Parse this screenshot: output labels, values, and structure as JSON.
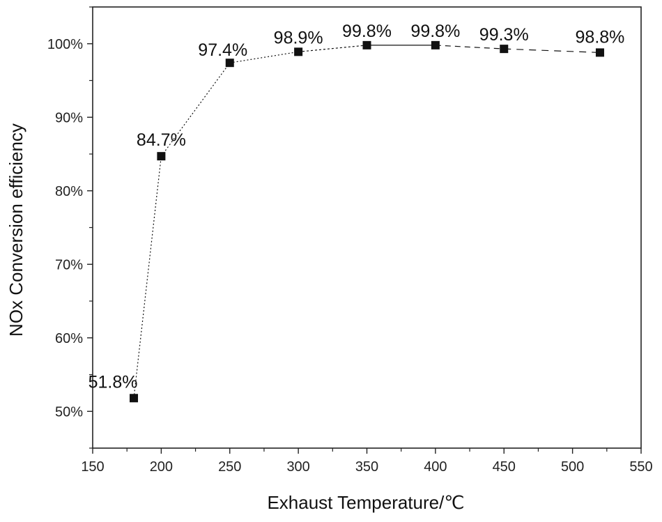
{
  "chart_data": {
    "type": "line",
    "title": "",
    "xlabel": "Exhaust Temperature/℃",
    "ylabel": "NOx Conversion efficiency",
    "xlim": [
      150,
      550
    ],
    "ylim": [
      45,
      105
    ],
    "x_ticks": [
      150,
      200,
      250,
      300,
      350,
      400,
      450,
      500,
      550
    ],
    "x_tick_labels": [
      "150",
      "200",
      "250",
      "300",
      "350",
      "400",
      "450",
      "500",
      "550"
    ],
    "y_ticks": [
      50,
      60,
      70,
      80,
      90,
      100
    ],
    "y_tick_labels": [
      "50%",
      "60%",
      "70%",
      "80%",
      "90%",
      "100%"
    ],
    "grid": false,
    "series": [
      {
        "x": [
          180,
          200,
          250,
          300,
          350,
          400,
          450,
          520
        ],
        "values": [
          51.8,
          84.7,
          97.4,
          98.9,
          99.8,
          99.8,
          99.3,
          98.8
        ],
        "labels": [
          "51.8%",
          "84.7%",
          "97.4%",
          "98.9%",
          "99.8%",
          "99.8%",
          "99.3%",
          "98.8%"
        ],
        "color": "#111111",
        "marker": "square"
      }
    ]
  }
}
